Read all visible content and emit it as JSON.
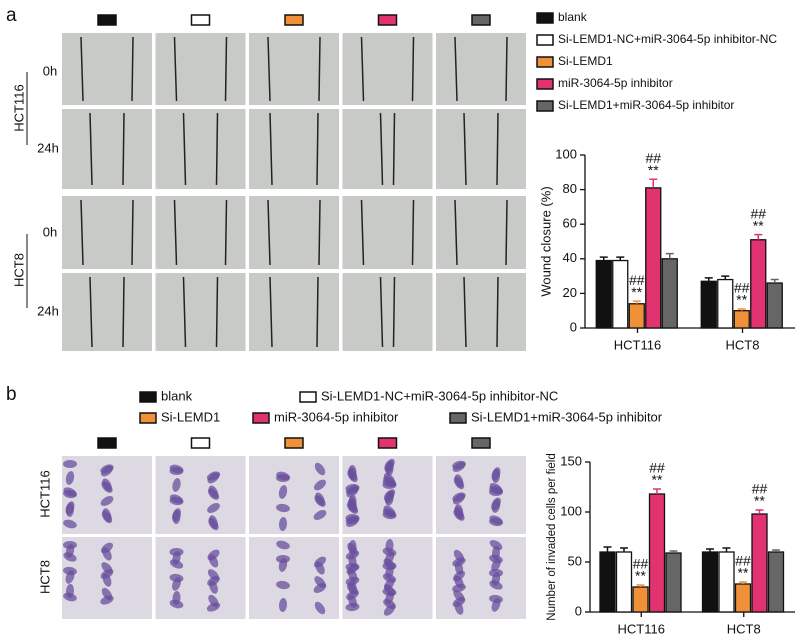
{
  "panels": {
    "a": {
      "label": "a",
      "cell_lines": [
        "HCT116",
        "HCT8"
      ],
      "times": [
        "0h",
        "24h"
      ]
    },
    "b": {
      "label": "b",
      "cell_lines": [
        "HCT116",
        "HCT8"
      ]
    }
  },
  "chart_data": [
    {
      "type": "bar",
      "ylabel": "Wound closure (%)",
      "categories": [
        "HCT116",
        "HCT8"
      ],
      "ylim": [
        0,
        100
      ],
      "yticks": [
        0,
        20,
        40,
        60,
        80,
        100
      ],
      "significance": [
        "##",
        "**"
      ],
      "series": [
        {
          "name": "blank",
          "color": "#111111",
          "values": [
            39,
            27
          ],
          "errors": [
            2,
            2
          ]
        },
        {
          "name": "Si-LEMD1-NC+miR-3064-5p inhibitor-NC",
          "color": "#ffffff",
          "values": [
            39,
            28
          ],
          "errors": [
            2,
            2
          ]
        },
        {
          "name": "Si-LEMD1",
          "color": "#f0913a",
          "values": [
            14,
            10
          ],
          "errors": [
            1.5,
            1
          ],
          "significant": true
        },
        {
          "name": "miR-3064-5p inhibitor",
          "color": "#e0336f",
          "values": [
            81,
            51
          ],
          "errors": [
            5,
            3
          ],
          "significant": true
        },
        {
          "name": "Si-LEMD1+miR-3064-5p inhibitor",
          "color": "#666666",
          "values": [
            40,
            26
          ],
          "errors": [
            3,
            2
          ]
        }
      ]
    },
    {
      "type": "bar",
      "ylabel": "Number of invaded cells per field",
      "categories": [
        "HCT116",
        "HCT8"
      ],
      "ylim": [
        0,
        150
      ],
      "yticks": [
        0,
        50,
        100,
        150
      ],
      "significance": [
        "##",
        "**"
      ],
      "series": [
        {
          "name": "blank",
          "color": "#111111",
          "values": [
            60,
            60
          ],
          "errors": [
            5,
            3
          ]
        },
        {
          "name": "Si-LEMD1-NC+miR-3064-5p inhibitor-NC",
          "color": "#ffffff",
          "values": [
            60,
            60
          ],
          "errors": [
            4,
            4
          ]
        },
        {
          "name": "Si-LEMD1",
          "color": "#f0913a",
          "values": [
            25,
            28
          ],
          "errors": [
            2,
            2
          ],
          "significant": true
        },
        {
          "name": "miR-3064-5p inhibitor",
          "color": "#e0336f",
          "values": [
            118,
            98
          ],
          "errors": [
            5,
            4
          ],
          "significant": true
        },
        {
          "name": "Si-LEMD1+miR-3064-5p inhibitor",
          "color": "#666666",
          "values": [
            59,
            60
          ],
          "errors": [
            2,
            2
          ]
        }
      ]
    }
  ]
}
